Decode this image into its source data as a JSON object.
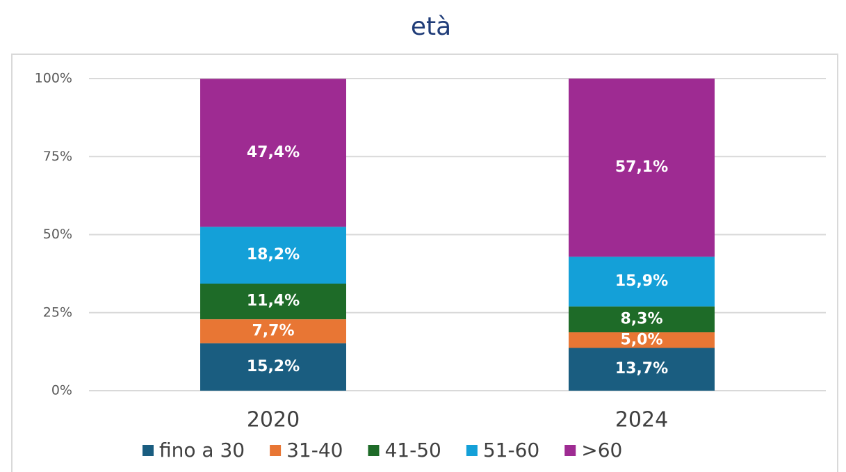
{
  "chart_data": {
    "type": "stacked_bar",
    "title": "età",
    "categories": [
      "2020",
      "2024"
    ],
    "series": [
      {
        "name": "fino a 30",
        "color": "#1a5d80",
        "values": [
          15.2,
          13.7
        ],
        "value_labels": [
          "15,2%",
          "13,7%"
        ]
      },
      {
        "name": "31-40",
        "color": "#e87634",
        "values": [
          7.7,
          5.0
        ],
        "value_labels": [
          "7,7%",
          "5,0%"
        ]
      },
      {
        "name": "41-50",
        "color": "#1e6b28",
        "values": [
          11.4,
          8.3
        ],
        "value_labels": [
          "11,4%",
          "8,3%"
        ]
      },
      {
        "name": "51-60",
        "color": "#14a0d8",
        "values": [
          18.2,
          15.9
        ],
        "value_labels": [
          "18,2%",
          "15,9%"
        ]
      },
      {
        "name": ">60",
        "color": "#9e2b92",
        "values": [
          47.4,
          57.1
        ],
        "value_labels": [
          "47,4%",
          "57,1%"
        ]
      }
    ],
    "ylim": [
      0,
      100
    ],
    "yticks": [
      {
        "value": 0,
        "label": "0%"
      },
      {
        "value": 25,
        "label": "25%"
      },
      {
        "value": 50,
        "label": "50%"
      },
      {
        "value": 75,
        "label": "75%"
      },
      {
        "value": 100,
        "label": "100%"
      }
    ],
    "grid": true,
    "legend": "bottom"
  }
}
